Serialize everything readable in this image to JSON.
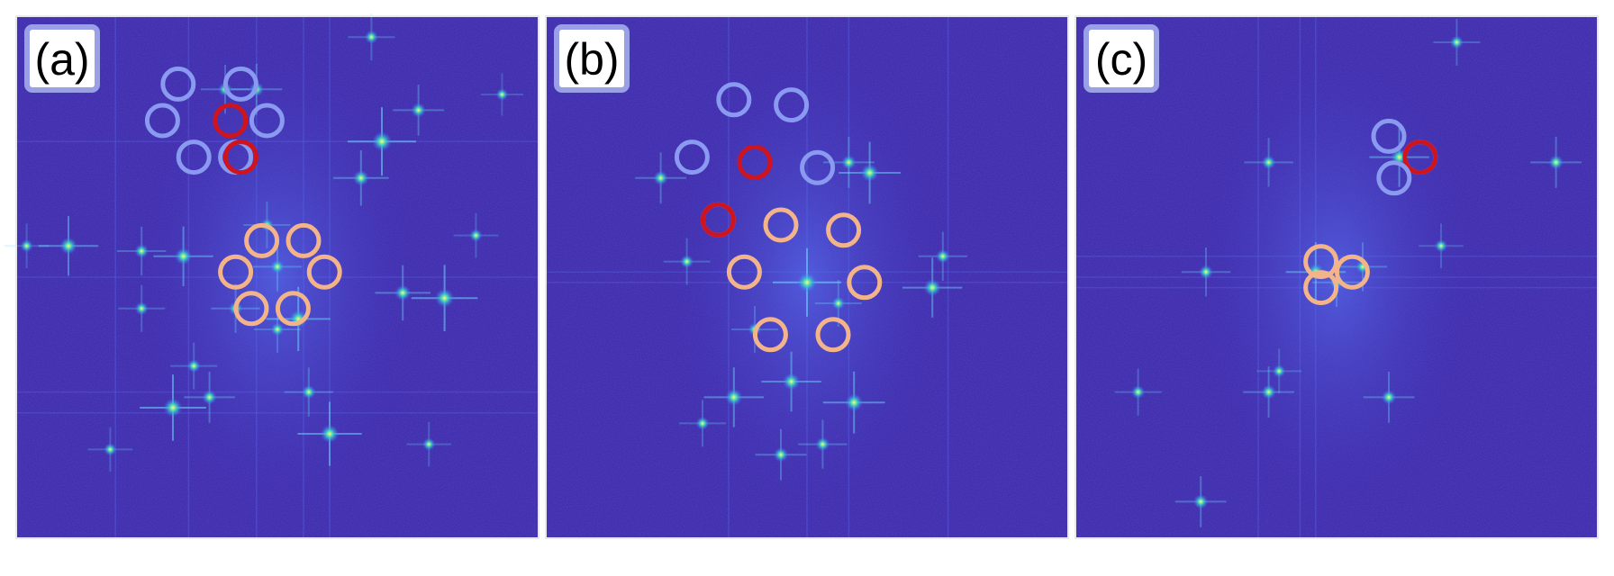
{
  "panels": [
    {
      "label": "(a)",
      "background": "#3a24a8",
      "streaks_v": [
        0.19,
        0.33,
        0.46,
        0.55,
        0.6
      ],
      "streaks_h": [
        0.24,
        0.5,
        0.72,
        0.76
      ],
      "spots": [
        [
          0.7,
          0.24,
          1.0
        ],
        [
          0.32,
          0.46,
          0.8
        ],
        [
          0.1,
          0.44,
          0.8
        ],
        [
          0.54,
          0.58,
          0.9
        ],
        [
          0.82,
          0.54,
          0.95
        ],
        [
          0.74,
          0.53,
          0.7
        ],
        [
          0.3,
          0.75,
          0.95
        ],
        [
          0.6,
          0.8,
          0.9
        ],
        [
          0.66,
          0.31,
          0.7
        ],
        [
          0.37,
          0.73,
          0.6
        ],
        [
          0.77,
          0.18,
          0.6
        ],
        [
          0.46,
          0.14,
          0.6
        ],
        [
          0.56,
          0.72,
          0.55
        ],
        [
          0.4,
          0.14,
          0.55
        ],
        [
          0.24,
          0.45,
          0.55
        ],
        [
          0.34,
          0.67,
          0.5
        ],
        [
          0.48,
          0.4,
          0.5
        ],
        [
          0.5,
          0.48,
          0.55
        ],
        [
          0.68,
          0.04,
          0.5
        ],
        [
          0.24,
          0.56,
          0.5
        ],
        [
          0.18,
          0.83,
          0.45
        ],
        [
          0.5,
          0.6,
          0.5
        ],
        [
          0.02,
          0.44,
          0.45
        ],
        [
          0.93,
          0.15,
          0.4
        ],
        [
          0.79,
          0.82,
          0.45
        ],
        [
          0.88,
          0.42,
          0.45
        ],
        [
          0.42,
          0.56,
          0.55
        ]
      ],
      "rings": [
        {
          "c": [
            0.31,
            0.13
          ],
          "color": "#8a9af0"
        },
        {
          "c": [
            0.43,
            0.13
          ],
          "color": "#8a9af0"
        },
        {
          "c": [
            0.28,
            0.2
          ],
          "color": "#8a9af0"
        },
        {
          "c": [
            0.41,
            0.2
          ],
          "color": "#d0141e"
        },
        {
          "c": [
            0.48,
            0.2
          ],
          "color": "#8a9af0"
        },
        {
          "c": [
            0.34,
            0.27
          ],
          "color": "#8a9af0"
        },
        {
          "c": [
            0.42,
            0.27
          ],
          "color": "#8a9af0"
        },
        {
          "c": [
            0.43,
            0.27
          ],
          "color": "#d0141e"
        },
        {
          "c": [
            0.47,
            0.43
          ],
          "color": "#f3b48a"
        },
        {
          "c": [
            0.55,
            0.43
          ],
          "color": "#f3b48a"
        },
        {
          "c": [
            0.42,
            0.49
          ],
          "color": "#f3b48a"
        },
        {
          "c": [
            0.59,
            0.49
          ],
          "color": "#f3b48a"
        },
        {
          "c": [
            0.45,
            0.56
          ],
          "color": "#f3b48a"
        },
        {
          "c": [
            0.53,
            0.56
          ],
          "color": "#f3b48a"
        }
      ]
    },
    {
      "label": "(b)",
      "background": "#3a24a8",
      "streaks_v": [
        0.35,
        0.5,
        0.58,
        0.77
      ],
      "streaks_h": [
        0.49,
        0.51
      ],
      "spots": [
        [
          0.5,
          0.51,
          1.0
        ],
        [
          0.62,
          0.3,
          0.85
        ],
        [
          0.22,
          0.31,
          0.6
        ],
        [
          0.36,
          0.73,
          0.8
        ],
        [
          0.47,
          0.7,
          0.8
        ],
        [
          0.59,
          0.74,
          0.85
        ],
        [
          0.74,
          0.52,
          0.8
        ],
        [
          0.45,
          0.84,
          0.6
        ],
        [
          0.53,
          0.82,
          0.55
        ],
        [
          0.27,
          0.47,
          0.5
        ],
        [
          0.76,
          0.46,
          0.55
        ],
        [
          0.3,
          0.78,
          0.5
        ],
        [
          0.58,
          0.28,
          0.6
        ],
        [
          0.4,
          0.6,
          0.5
        ],
        [
          0.56,
          0.55,
          0.5
        ]
      ],
      "rings": [
        {
          "c": [
            0.36,
            0.16
          ],
          "color": "#8a9af0"
        },
        {
          "c": [
            0.47,
            0.17
          ],
          "color": "#8a9af0"
        },
        {
          "c": [
            0.28,
            0.27
          ],
          "color": "#8a9af0"
        },
        {
          "c": [
            0.4,
            0.28
          ],
          "color": "#d0141e"
        },
        {
          "c": [
            0.52,
            0.29
          ],
          "color": "#8a9af0"
        },
        {
          "c": [
            0.33,
            0.39
          ],
          "color": "#8a9af0"
        },
        {
          "c": [
            0.33,
            0.39
          ],
          "color": "#d0141e"
        },
        {
          "c": [
            0.45,
            0.4
          ],
          "color": "#f3b48a"
        },
        {
          "c": [
            0.57,
            0.41
          ],
          "color": "#f3b48a"
        },
        {
          "c": [
            0.38,
            0.49
          ],
          "color": "#f3b48a"
        },
        {
          "c": [
            0.61,
            0.51
          ],
          "color": "#f3b48a"
        },
        {
          "c": [
            0.43,
            0.61
          ],
          "color": "#f3b48a"
        },
        {
          "c": [
            0.55,
            0.61
          ],
          "color": "#f3b48a"
        }
      ]
    },
    {
      "label": "(c)",
      "background": "#3a24a8",
      "streaks_v": [
        0.35,
        0.43,
        0.46
      ],
      "streaks_h": [
        0.46,
        0.5,
        0.52
      ],
      "spots": [
        [
          0.62,
          0.27,
          0.8
        ],
        [
          0.92,
          0.28,
          0.6
        ],
        [
          0.37,
          0.28,
          0.55
        ],
        [
          0.25,
          0.49,
          0.55
        ],
        [
          0.46,
          0.49,
          0.8
        ],
        [
          0.55,
          0.48,
          0.55
        ],
        [
          0.37,
          0.72,
          0.6
        ],
        [
          0.6,
          0.73,
          0.6
        ],
        [
          0.12,
          0.72,
          0.5
        ],
        [
          0.24,
          0.93,
          0.6
        ],
        [
          0.73,
          0.05,
          0.5
        ],
        [
          0.39,
          0.68,
          0.45
        ],
        [
          0.5,
          0.51,
          0.55
        ],
        [
          0.7,
          0.44,
          0.45
        ]
      ],
      "rings": [
        {
          "c": [
            0.6,
            0.23
          ],
          "color": "#8a9af0"
        },
        {
          "c": [
            0.66,
            0.27
          ],
          "color": "#8a9af0"
        },
        {
          "c": [
            0.66,
            0.27
          ],
          "color": "#d0141e"
        },
        {
          "c": [
            0.61,
            0.31
          ],
          "color": "#8a9af0"
        },
        {
          "c": [
            0.47,
            0.47
          ],
          "color": "#f3b48a"
        },
        {
          "c": [
            0.53,
            0.49
          ],
          "color": "#f3b48a"
        },
        {
          "c": [
            0.47,
            0.52
          ],
          "color": "#f3b48a"
        }
      ]
    }
  ]
}
